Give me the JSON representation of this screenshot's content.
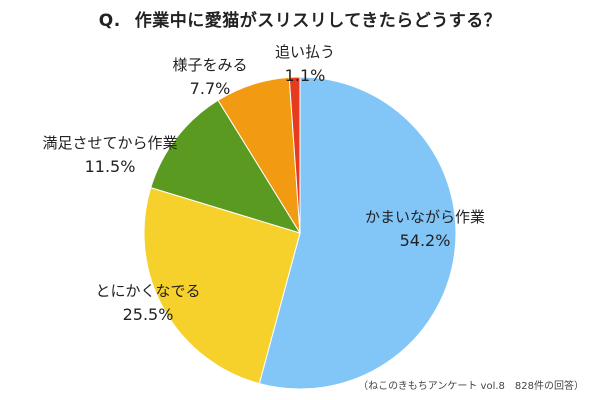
{
  "chart_data": {
    "type": "pie",
    "title_prefix": "Q.",
    "title": "作業中に愛猫がスリスリしてきたらどうする？",
    "source": "（ねこのきもちアンケート vol.8　828件の回答）",
    "slices": [
      {
        "label": "かまいながら作業",
        "value": 54.2,
        "display": "54.2%",
        "color": "#82c6f7"
      },
      {
        "label": "とにかくなでる",
        "value": 25.5,
        "display": "25.5%",
        "color": "#f7d12b"
      },
      {
        "label": "満足させてから作業",
        "value": 11.5,
        "display": "11.5%",
        "color": "#5a9a21"
      },
      {
        "label": "様子をみる",
        "value": 7.7,
        "display": "7.7%",
        "color": "#f39a13"
      },
      {
        "label": "追い払う",
        "value": 1.1,
        "display": "1.1%",
        "color": "#e53b1e"
      }
    ]
  }
}
